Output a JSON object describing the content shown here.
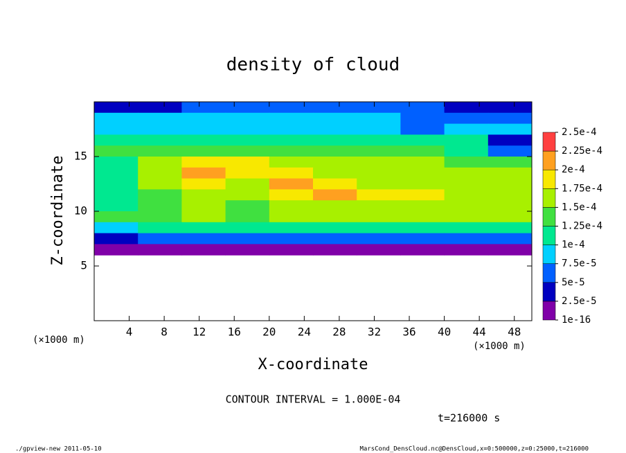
{
  "chart_data": {
    "type": "heatmap",
    "title": "density of cloud",
    "x_label": "X-coordinate",
    "y_label": "Z-coordinate",
    "x_unit": "(×1000 m)",
    "y_unit": "(×1000 m)",
    "note": "CONTOUR INTERVAL = 1.000E-04",
    "time_label": "t=216000 s",
    "footer_left": "./gpview-new  2011-05-10",
    "footer_right": "MarsCond_DensCloud.nc@DensCloud,x=0:500000,z=0:25000,t=216000",
    "xlim": [
      0,
      50
    ],
    "ylim": [
      0,
      20
    ],
    "xticks": [
      4,
      8,
      12,
      16,
      20,
      24,
      28,
      32,
      36,
      40,
      44,
      48
    ],
    "yticks": [
      5,
      10,
      15
    ],
    "x": [
      2.5,
      7.5,
      12.5,
      17.5,
      22.5,
      27.5,
      32.5,
      37.5,
      42.5,
      47.5
    ],
    "y": [
      19.5,
      18.5,
      17.5,
      16.5,
      15.5,
      14.5,
      13.5,
      12.5,
      11.5,
      10.5,
      9.5,
      8.5,
      7.5,
      6.5
    ],
    "z": [
      [
        3e-05,
        4e-05,
        5e-05,
        5e-05,
        5e-05,
        5e-05,
        5e-05,
        5e-05,
        4e-05,
        3e-05
      ],
      [
        8e-05,
        8e-05,
        8e-05,
        8e-05,
        8e-05,
        8e-05,
        8e-05,
        6e-05,
        6e-05,
        5e-05
      ],
      [
        9e-05,
        9e-05,
        9e-05,
        9e-05,
        9e-05,
        9e-05,
        9e-05,
        7e-05,
        9e-05,
        8e-05
      ],
      [
        0.00011,
        0.00011,
        0.00011,
        0.00011,
        0.00011,
        0.00011,
        0.00011,
        0.00011,
        0.0001,
        4e-05
      ],
      [
        0.00013,
        0.00014,
        0.00014,
        0.00014,
        0.00014,
        0.00013,
        0.00013,
        0.00013,
        0.00012,
        5e-05
      ],
      [
        0.00012,
        0.00016,
        0.00018,
        0.00018,
        0.00017,
        0.00016,
        0.00015,
        0.00015,
        0.00014,
        0.00013
      ],
      [
        0.0001,
        0.00017,
        0.0002,
        0.00019,
        0.00018,
        0.00017,
        0.00016,
        0.00016,
        0.00015,
        0.00015
      ],
      [
        0.0001,
        0.00015,
        0.00018,
        0.00016,
        0.0002,
        0.00019,
        0.00017,
        0.00017,
        0.00016,
        0.00016
      ],
      [
        0.00011,
        0.00014,
        0.00017,
        0.00015,
        0.00018,
        0.0002,
        0.00018,
        0.00018,
        0.00017,
        0.00016
      ],
      [
        0.00012,
        0.00014,
        0.00016,
        0.00014,
        0.00016,
        0.00017,
        0.00017,
        0.00017,
        0.00016,
        0.00016
      ],
      [
        0.00013,
        0.00013,
        0.00015,
        0.00014,
        0.00015,
        0.00015,
        0.00015,
        0.00015,
        0.00015,
        0.00015
      ],
      [
        8e-05,
        0.00012,
        0.00012,
        0.00012,
        0.00012,
        0.00012,
        0.00012,
        0.00012,
        0.00012,
        0.00012
      ],
      [
        4e-05,
        5e-05,
        5e-05,
        5e-05,
        5e-05,
        5e-05,
        5e-05,
        5e-05,
        5e-05,
        5e-05
      ],
      [
        1e-16,
        1e-16,
        1e-16,
        1e-16,
        1e-16,
        1e-16,
        1e-16,
        1e-16,
        1e-16,
        1e-16
      ]
    ],
    "levels": [
      {
        "value": 1e-16,
        "label": "1e-16"
      },
      {
        "value": 2.5e-05,
        "label": "2.5e-5"
      },
      {
        "value": 5e-05,
        "label": "5e-5"
      },
      {
        "value": 7.5e-05,
        "label": "7.5e-5"
      },
      {
        "value": 0.0001,
        "label": "1e-4"
      },
      {
        "value": 0.000125,
        "label": "1.25e-4"
      },
      {
        "value": 0.00015,
        "label": "1.5e-4"
      },
      {
        "value": 0.000175,
        "label": "1.75e-4"
      },
      {
        "value": 0.0002,
        "label": "2e-4"
      },
      {
        "value": 0.000225,
        "label": "2.25e-4"
      },
      {
        "value": 0.00025,
        "label": "2.5e-4"
      }
    ],
    "colors": [
      "#8000a8",
      "#0000c0",
      "#0060ff",
      "#00d0ff",
      "#00e890",
      "#40e040",
      "#a8f000",
      "#f8e800",
      "#ffa020",
      "#ff4040"
    ]
  }
}
